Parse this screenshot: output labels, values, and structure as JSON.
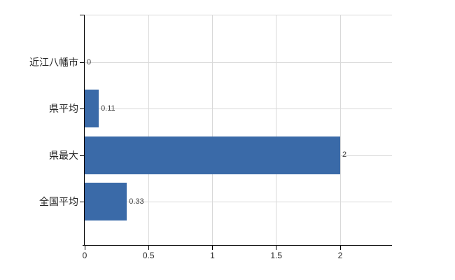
{
  "chart_data": {
    "type": "bar",
    "orientation": "horizontal",
    "title": "",
    "xlabel": "",
    "ylabel": "",
    "categories": [
      "近江八幡市",
      "県平均",
      "県最大",
      "全国平均"
    ],
    "values": [
      0,
      0.11,
      2,
      0.33
    ],
    "value_labels": [
      "0",
      "0.11",
      "2",
      "0.33"
    ],
    "x_ticks": [
      0,
      0.5,
      1,
      1.5,
      2
    ],
    "x_tick_labels": [
      "0",
      "0.5",
      "1",
      "1.5",
      "2"
    ],
    "xlim": [
      0,
      2.4
    ],
    "grid": true,
    "legend": false,
    "colors": {
      "bar": "#3a6aa8",
      "gridline": "#d9d9d9",
      "axis": "#000000",
      "category_text": "#262626",
      "value_text": "#404040",
      "background": "#ffffff"
    }
  }
}
